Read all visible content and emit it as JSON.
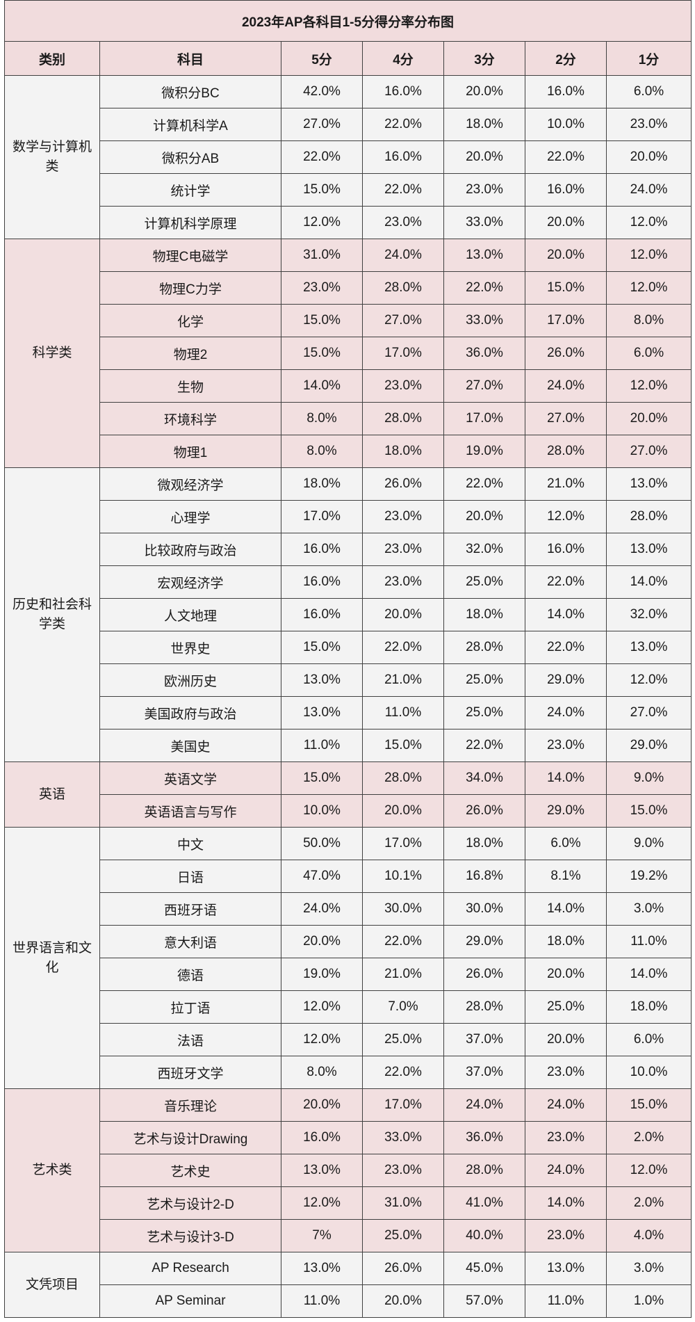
{
  "title": "2023年AP各科目1-5分得分率分布图",
  "headers": [
    "类别",
    "科目",
    "5分",
    "4分",
    "3分",
    "2分",
    "1分"
  ],
  "groups": [
    {
      "category": "数学与计算机类",
      "rows": [
        {
          "subject": "微积分BC",
          "s5": "42.0%",
          "s4": "16.0%",
          "s3": "20.0%",
          "s2": "16.0%",
          "s1": "6.0%"
        },
        {
          "subject": "计算机科学A",
          "s5": "27.0%",
          "s4": "22.0%",
          "s3": "18.0%",
          "s2": "10.0%",
          "s1": "23.0%"
        },
        {
          "subject": "微积分AB",
          "s5": "22.0%",
          "s4": "16.0%",
          "s3": "20.0%",
          "s2": "22.0%",
          "s1": "20.0%"
        },
        {
          "subject": "统计学",
          "s5": "15.0%",
          "s4": "22.0%",
          "s3": "23.0%",
          "s2": "16.0%",
          "s1": "24.0%"
        },
        {
          "subject": "计算机科学原理",
          "s5": "12.0%",
          "s4": "23.0%",
          "s3": "33.0%",
          "s2": "20.0%",
          "s1": "12.0%"
        }
      ]
    },
    {
      "category": "科学类",
      "rows": [
        {
          "subject": "物理C电磁学",
          "s5": "31.0%",
          "s4": "24.0%",
          "s3": "13.0%",
          "s2": "20.0%",
          "s1": "12.0%"
        },
        {
          "subject": "物理C力学",
          "s5": "23.0%",
          "s4": "28.0%",
          "s3": "22.0%",
          "s2": "15.0%",
          "s1": "12.0%"
        },
        {
          "subject": "化学",
          "s5": "15.0%",
          "s4": "27.0%",
          "s3": "33.0%",
          "s2": "17.0%",
          "s1": "8.0%"
        },
        {
          "subject": "物理2",
          "s5": "15.0%",
          "s4": "17.0%",
          "s3": "36.0%",
          "s2": "26.0%",
          "s1": "6.0%"
        },
        {
          "subject": "生物",
          "s5": "14.0%",
          "s4": "23.0%",
          "s3": "27.0%",
          "s2": "24.0%",
          "s1": "12.0%"
        },
        {
          "subject": "环境科学",
          "s5": "8.0%",
          "s4": "28.0%",
          "s3": "17.0%",
          "s2": "27.0%",
          "s1": "20.0%"
        },
        {
          "subject": "物理1",
          "s5": "8.0%",
          "s4": "18.0%",
          "s3": "19.0%",
          "s2": "28.0%",
          "s1": "27.0%"
        }
      ]
    },
    {
      "category": "历史和社会科学类",
      "rows": [
        {
          "subject": "微观经济学",
          "s5": "18.0%",
          "s4": "26.0%",
          "s3": "22.0%",
          "s2": "21.0%",
          "s1": "13.0%"
        },
        {
          "subject": "心理学",
          "s5": "17.0%",
          "s4": "23.0%",
          "s3": "20.0%",
          "s2": "12.0%",
          "s1": "28.0%"
        },
        {
          "subject": "比较政府与政治",
          "s5": "16.0%",
          "s4": "23.0%",
          "s3": "32.0%",
          "s2": "16.0%",
          "s1": "13.0%"
        },
        {
          "subject": "宏观经济学",
          "s5": "16.0%",
          "s4": "23.0%",
          "s3": "25.0%",
          "s2": "22.0%",
          "s1": "14.0%"
        },
        {
          "subject": "人文地理",
          "s5": "16.0%",
          "s4": "20.0%",
          "s3": "18.0%",
          "s2": "14.0%",
          "s1": "32.0%"
        },
        {
          "subject": "世界史",
          "s5": "15.0%",
          "s4": "22.0%",
          "s3": "28.0%",
          "s2": "22.0%",
          "s1": "13.0%"
        },
        {
          "subject": "欧洲历史",
          "s5": "13.0%",
          "s4": "21.0%",
          "s3": "25.0%",
          "s2": "29.0%",
          "s1": "12.0%"
        },
        {
          "subject": "美国政府与政治",
          "s5": "13.0%",
          "s4": "11.0%",
          "s3": "25.0%",
          "s2": "24.0%",
          "s1": "27.0%"
        },
        {
          "subject": "美国史",
          "s5": "11.0%",
          "s4": "15.0%",
          "s3": "22.0%",
          "s2": "23.0%",
          "s1": "29.0%"
        }
      ]
    },
    {
      "category": "英语",
      "rows": [
        {
          "subject": "英语文学",
          "s5": "15.0%",
          "s4": "28.0%",
          "s3": "34.0%",
          "s2": "14.0%",
          "s1": "9.0%"
        },
        {
          "subject": "英语语言与写作",
          "s5": "10.0%",
          "s4": "20.0%",
          "s3": "26.0%",
          "s2": "29.0%",
          "s1": "15.0%"
        }
      ]
    },
    {
      "category": "世界语言和文化",
      "rows": [
        {
          "subject": "中文",
          "s5": "50.0%",
          "s4": "17.0%",
          "s3": "18.0%",
          "s2": "6.0%",
          "s1": "9.0%"
        },
        {
          "subject": "日语",
          "s5": "47.0%",
          "s4": "10.1%",
          "s3": "16.8%",
          "s2": "8.1%",
          "s1": "19.2%"
        },
        {
          "subject": "西班牙语",
          "s5": "24.0%",
          "s4": "30.0%",
          "s3": "30.0%",
          "s2": "14.0%",
          "s1": "3.0%"
        },
        {
          "subject": "意大利语",
          "s5": "20.0%",
          "s4": "22.0%",
          "s3": "29.0%",
          "s2": "18.0%",
          "s1": "11.0%"
        },
        {
          "subject": "德语",
          "s5": "19.0%",
          "s4": "21.0%",
          "s3": "26.0%",
          "s2": "20.0%",
          "s1": "14.0%"
        },
        {
          "subject": "拉丁语",
          "s5": "12.0%",
          "s4": "7.0%",
          "s3": "28.0%",
          "s2": "25.0%",
          "s1": "18.0%"
        },
        {
          "subject": "法语",
          "s5": "12.0%",
          "s4": "25.0%",
          "s3": "37.0%",
          "s2": "20.0%",
          "s1": "6.0%"
        },
        {
          "subject": "西班牙文学",
          "s5": "8.0%",
          "s4": "22.0%",
          "s3": "37.0%",
          "s2": "23.0%",
          "s1": "10.0%"
        }
      ]
    },
    {
      "category": "艺术类",
      "rows": [
        {
          "subject": "音乐理论",
          "s5": "20.0%",
          "s4": "17.0%",
          "s3": "24.0%",
          "s2": "24.0%",
          "s1": "15.0%"
        },
        {
          "subject": "艺术与设计Drawing",
          "s5": "16.0%",
          "s4": "33.0%",
          "s3": "36.0%",
          "s2": "23.0%",
          "s1": "2.0%"
        },
        {
          "subject": "艺术史",
          "s5": "13.0%",
          "s4": "23.0%",
          "s3": "28.0%",
          "s2": "24.0%",
          "s1": "12.0%"
        },
        {
          "subject": "艺术与设计2-D",
          "s5": "12.0%",
          "s4": "31.0%",
          "s3": "41.0%",
          "s2": "14.0%",
          "s1": "2.0%"
        },
        {
          "subject": "艺术与设计3-D",
          "s5": "7%",
          "s4": "25.0%",
          "s3": "40.0%",
          "s2": "23.0%",
          "s1": "4.0%"
        }
      ]
    },
    {
      "category": "文凭项目",
      "rows": [
        {
          "subject": "AP Research",
          "s5": "13.0%",
          "s4": "26.0%",
          "s3": "45.0%",
          "s2": "13.0%",
          "s1": "3.0%"
        },
        {
          "subject": "AP Seminar",
          "s5": "11.0%",
          "s4": "20.0%",
          "s3": "57.0%",
          "s2": "11.0%",
          "s1": "1.0%"
        }
      ]
    }
  ]
}
